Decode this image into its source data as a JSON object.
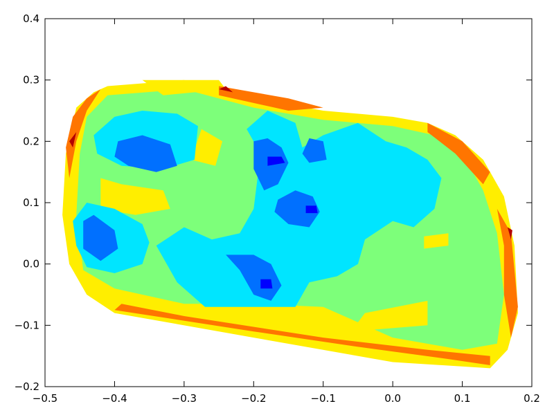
{
  "chart_data": {
    "type": "contour",
    "title": "",
    "xlabel": "",
    "ylabel": "",
    "xlim": [
      -0.5,
      0.2
    ],
    "ylim": [
      -0.2,
      0.4
    ],
    "x_ticks": [
      -0.5,
      -0.4,
      -0.3,
      -0.2,
      -0.1,
      0.0,
      0.1,
      0.2
    ],
    "x_tick_labels": [
      "−0.5",
      "−0.4",
      "−0.3",
      "−0.2",
      "−0.1",
      "0.0",
      "0.1",
      "0.2"
    ],
    "y_ticks": [
      -0.2,
      -0.1,
      0.0,
      0.1,
      0.2,
      0.3,
      0.4
    ],
    "y_tick_labels": [
      "−0.2",
      "−0.1",
      "0.0",
      "0.1",
      "0.2",
      "0.3",
      "0.4"
    ],
    "grid": false,
    "legend": "none",
    "colormap": "jet",
    "levels": [
      {
        "name": "level-1",
        "color": "#00007f"
      },
      {
        "name": "level-2",
        "color": "#0000ff"
      },
      {
        "name": "level-3",
        "color": "#0070ff"
      },
      {
        "name": "level-4",
        "color": "#00e5ff"
      },
      {
        "name": "level-5",
        "color": "#7dff7a"
      },
      {
        "name": "level-6",
        "color": "#ffee00"
      },
      {
        "name": "level-7",
        "color": "#ff7500"
      },
      {
        "name": "level-8",
        "color": "#b40000"
      }
    ],
    "regions": [
      {
        "level": "level-6",
        "points": [
          [
            -0.455,
            0.255
          ],
          [
            -0.43,
            0.28
          ],
          [
            -0.41,
            0.29
          ],
          [
            -0.3,
            0.3
          ],
          [
            -0.2,
            0.27
          ],
          [
            -0.1,
            0.25
          ],
          [
            0.0,
            0.24
          ],
          [
            0.05,
            0.23
          ],
          [
            0.09,
            0.21
          ],
          [
            0.13,
            0.17
          ],
          [
            0.16,
            0.11
          ],
          [
            0.175,
            0.03
          ],
          [
            0.18,
            -0.08
          ],
          [
            0.165,
            -0.14
          ],
          [
            0.14,
            -0.17
          ],
          [
            0.0,
            -0.16
          ],
          [
            -0.2,
            -0.12
          ],
          [
            -0.4,
            -0.08
          ],
          [
            -0.44,
            -0.05
          ],
          [
            -0.465,
            0.0
          ],
          [
            -0.475,
            0.08
          ],
          [
            -0.47,
            0.18
          ]
        ]
      },
      {
        "level": "level-5",
        "points": [
          [
            -0.44,
            0.24
          ],
          [
            -0.41,
            0.275
          ],
          [
            -0.3,
            0.285
          ],
          [
            -0.2,
            0.255
          ],
          [
            -0.1,
            0.235
          ],
          [
            0.0,
            0.225
          ],
          [
            0.06,
            0.21
          ],
          [
            0.1,
            0.18
          ],
          [
            0.13,
            0.12
          ],
          [
            0.15,
            0.05
          ],
          [
            0.16,
            -0.05
          ],
          [
            0.15,
            -0.13
          ],
          [
            0.1,
            -0.14
          ],
          [
            0.0,
            -0.12
          ],
          [
            -0.1,
            -0.07
          ],
          [
            -0.2,
            -0.065
          ],
          [
            -0.3,
            -0.065
          ],
          [
            -0.4,
            -0.04
          ],
          [
            -0.445,
            -0.01
          ],
          [
            -0.455,
            0.08
          ],
          [
            -0.45,
            0.18
          ]
        ]
      },
      {
        "level": "level-6",
        "points": [
          [
            -0.42,
            0.14
          ],
          [
            -0.39,
            0.13
          ],
          [
            -0.33,
            0.12
          ],
          [
            -0.32,
            0.09
          ],
          [
            -0.37,
            0.08
          ],
          [
            -0.42,
            0.09
          ]
        ]
      },
      {
        "level": "level-6",
        "points": [
          [
            -0.275,
            0.22
          ],
          [
            -0.245,
            0.2
          ],
          [
            -0.255,
            0.16
          ],
          [
            -0.29,
            0.17
          ]
        ]
      },
      {
        "level": "level-6",
        "points": [
          [
            -0.36,
            0.3
          ],
          [
            -0.25,
            0.3
          ],
          [
            -0.24,
            0.285
          ],
          [
            -0.33,
            0.275
          ]
        ]
      },
      {
        "level": "level-6",
        "points": [
          [
            0.045,
            0.045
          ],
          [
            0.08,
            0.05
          ],
          [
            0.08,
            0.03
          ],
          [
            0.045,
            0.025
          ]
        ]
      },
      {
        "level": "level-6",
        "points": [
          [
            -0.06,
            -0.11
          ],
          [
            0.05,
            -0.1
          ],
          [
            0.05,
            -0.06
          ],
          [
            -0.04,
            -0.08
          ]
        ]
      },
      {
        "level": "level-4",
        "points": [
          [
            -0.43,
            0.21
          ],
          [
            -0.4,
            0.24
          ],
          [
            -0.36,
            0.25
          ],
          [
            -0.31,
            0.245
          ],
          [
            -0.28,
            0.225
          ],
          [
            -0.285,
            0.17
          ],
          [
            -0.33,
            0.155
          ],
          [
            -0.39,
            0.16
          ],
          [
            -0.425,
            0.18
          ]
        ]
      },
      {
        "level": "level-4",
        "points": [
          [
            -0.46,
            0.07
          ],
          [
            -0.44,
            0.1
          ],
          [
            -0.4,
            0.09
          ],
          [
            -0.36,
            0.065
          ],
          [
            -0.35,
            0.035
          ],
          [
            -0.36,
            0.0
          ],
          [
            -0.4,
            -0.015
          ],
          [
            -0.44,
            -0.005
          ],
          [
            -0.455,
            0.03
          ]
        ]
      },
      {
        "level": "level-4",
        "points": [
          [
            -0.34,
            0.03
          ],
          [
            -0.3,
            0.06
          ],
          [
            -0.26,
            0.04
          ],
          [
            -0.22,
            0.05
          ],
          [
            -0.2,
            0.09
          ],
          [
            -0.19,
            0.18
          ],
          [
            -0.21,
            0.22
          ],
          [
            -0.18,
            0.25
          ],
          [
            -0.14,
            0.23
          ],
          [
            -0.13,
            0.19
          ],
          [
            -0.1,
            0.21
          ],
          [
            -0.05,
            0.23
          ],
          [
            -0.01,
            0.2
          ],
          [
            0.02,
            0.19
          ],
          [
            0.05,
            0.17
          ],
          [
            0.07,
            0.14
          ],
          [
            0.06,
            0.09
          ],
          [
            0.03,
            0.06
          ],
          [
            0.0,
            0.07
          ],
          [
            -0.04,
            0.04
          ],
          [
            -0.05,
            0.0
          ],
          [
            -0.08,
            -0.02
          ],
          [
            -0.12,
            -0.03
          ],
          [
            -0.14,
            -0.07
          ],
          [
            -0.2,
            -0.07
          ],
          [
            -0.27,
            -0.07
          ],
          [
            -0.31,
            -0.03
          ]
        ]
      },
      {
        "level": "level-3",
        "points": [
          [
            -0.395,
            0.2
          ],
          [
            -0.36,
            0.21
          ],
          [
            -0.32,
            0.195
          ],
          [
            -0.31,
            0.16
          ],
          [
            -0.34,
            0.15
          ],
          [
            -0.38,
            0.16
          ],
          [
            -0.4,
            0.175
          ]
        ]
      },
      {
        "level": "level-3",
        "points": [
          [
            -0.445,
            0.07
          ],
          [
            -0.43,
            0.08
          ],
          [
            -0.4,
            0.055
          ],
          [
            -0.395,
            0.025
          ],
          [
            -0.42,
            0.005
          ],
          [
            -0.445,
            0.025
          ]
        ]
      },
      {
        "level": "level-3",
        "points": [
          [
            -0.2,
            0.2
          ],
          [
            -0.18,
            0.205
          ],
          [
            -0.16,
            0.19
          ],
          [
            -0.15,
            0.165
          ],
          [
            -0.165,
            0.13
          ],
          [
            -0.185,
            0.12
          ],
          [
            -0.2,
            0.155
          ]
        ]
      },
      {
        "level": "level-3",
        "points": [
          [
            -0.165,
            0.105
          ],
          [
            -0.14,
            0.12
          ],
          [
            -0.115,
            0.11
          ],
          [
            -0.105,
            0.085
          ],
          [
            -0.12,
            0.06
          ],
          [
            -0.15,
            0.065
          ],
          [
            -0.17,
            0.085
          ]
        ]
      },
      {
        "level": "level-3",
        "points": [
          [
            -0.12,
            0.205
          ],
          [
            -0.1,
            0.2
          ],
          [
            -0.095,
            0.17
          ],
          [
            -0.12,
            0.165
          ],
          [
            -0.13,
            0.18
          ]
        ]
      },
      {
        "level": "level-3",
        "points": [
          [
            -0.24,
            0.015
          ],
          [
            -0.2,
            0.015
          ],
          [
            -0.175,
            -0.0
          ],
          [
            -0.16,
            -0.035
          ],
          [
            -0.175,
            -0.06
          ],
          [
            -0.2,
            -0.05
          ],
          [
            -0.22,
            -0.01
          ]
        ]
      },
      {
        "level": "level-2",
        "points": [
          [
            -0.18,
            0.175
          ],
          [
            -0.16,
            0.175
          ],
          [
            -0.155,
            0.165
          ],
          [
            -0.18,
            0.16
          ]
        ]
      },
      {
        "level": "level-2",
        "points": [
          [
            -0.125,
            0.095
          ],
          [
            -0.11,
            0.095
          ],
          [
            -0.108,
            0.083
          ],
          [
            -0.125,
            0.083
          ]
        ]
      },
      {
        "level": "level-2",
        "points": [
          [
            -0.19,
            -0.025
          ],
          [
            -0.175,
            -0.025
          ],
          [
            -0.173,
            -0.04
          ],
          [
            -0.19,
            -0.04
          ]
        ]
      },
      {
        "level": "level-7",
        "points": [
          [
            -0.47,
            0.19
          ],
          [
            -0.46,
            0.24
          ],
          [
            -0.44,
            0.27
          ],
          [
            -0.42,
            0.285
          ],
          [
            -0.44,
            0.25
          ],
          [
            -0.455,
            0.2
          ],
          [
            -0.465,
            0.14
          ]
        ]
      },
      {
        "level": "level-7",
        "points": [
          [
            -0.25,
            0.29
          ],
          [
            -0.15,
            0.27
          ],
          [
            -0.1,
            0.255
          ],
          [
            -0.15,
            0.25
          ],
          [
            -0.25,
            0.275
          ]
        ]
      },
      {
        "level": "level-7",
        "points": [
          [
            0.05,
            0.23
          ],
          [
            0.1,
            0.2
          ],
          [
            0.14,
            0.15
          ],
          [
            0.13,
            0.13
          ],
          [
            0.09,
            0.18
          ],
          [
            0.05,
            0.215
          ]
        ]
      },
      {
        "level": "level-7",
        "points": [
          [
            0.15,
            0.09
          ],
          [
            0.17,
            0.05
          ],
          [
            0.18,
            -0.07
          ],
          [
            0.17,
            -0.12
          ],
          [
            0.16,
            -0.05
          ],
          [
            0.16,
            0.03
          ]
        ]
      },
      {
        "level": "level-7",
        "points": [
          [
            -0.4,
            -0.075
          ],
          [
            -0.2,
            -0.11
          ],
          [
            -0.05,
            -0.135
          ],
          [
            0.08,
            -0.155
          ],
          [
            0.14,
            -0.165
          ],
          [
            0.14,
            -0.15
          ],
          [
            0.05,
            -0.14
          ],
          [
            -0.1,
            -0.12
          ],
          [
            -0.3,
            -0.085
          ],
          [
            -0.39,
            -0.065
          ]
        ]
      },
      {
        "level": "level-8",
        "points": [
          [
            -0.465,
            0.2
          ],
          [
            -0.46,
            0.19
          ],
          [
            -0.455,
            0.215
          ]
        ]
      },
      {
        "level": "level-8",
        "points": [
          [
            0.165,
            0.06
          ],
          [
            0.17,
            0.04
          ],
          [
            0.172,
            0.055
          ]
        ]
      },
      {
        "level": "level-8",
        "points": [
          [
            -0.25,
            0.285
          ],
          [
            -0.23,
            0.28
          ],
          [
            -0.24,
            0.29
          ]
        ]
      }
    ]
  }
}
